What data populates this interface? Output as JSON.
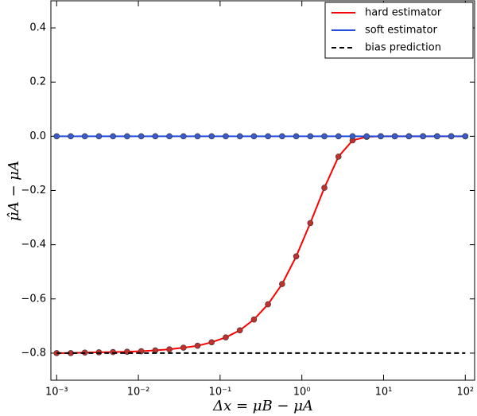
{
  "chart_data": {
    "type": "line",
    "xlabel": "Δx = μB − μA",
    "ylabel": "μ̂A − μA",
    "xscale": "log",
    "x": [
      0.001,
      0.001487,
      0.002212,
      0.00329,
      0.004894,
      0.007279,
      0.01083,
      0.0161,
      0.02395,
      0.03562,
      0.05298,
      0.0788,
      0.1172,
      0.1743,
      0.2593,
      0.3857,
      0.5736,
      0.8532,
      1.269,
      1.887,
      2.807,
      4.175,
      6.21,
      9.237,
      13.74,
      20.43,
      30.39,
      45.2,
      67.23,
      100
    ],
    "series": [
      {
        "name": "hard estimator",
        "color": "#ff0000",
        "marker_color": "#c0302c",
        "markers": true,
        "dash": false,
        "values": [
          -0.8,
          -0.8,
          -0.798,
          -0.797,
          -0.796,
          -0.795,
          -0.793,
          -0.79,
          -0.786,
          -0.78,
          -0.773,
          -0.76,
          -0.742,
          -0.716,
          -0.676,
          -0.62,
          -0.545,
          -0.443,
          -0.32,
          -0.19,
          -0.075,
          -0.015,
          -0.002,
          0,
          0,
          0,
          0,
          0,
          0,
          0
        ]
      },
      {
        "name": "soft estimator",
        "color": "#1f4fe0",
        "marker_color": "#3a5bc8",
        "markers": true,
        "dash": false,
        "values": [
          0,
          0,
          0,
          0,
          0,
          0,
          0,
          0,
          0,
          0,
          0,
          0,
          0,
          0,
          0,
          0,
          0,
          0,
          0,
          0,
          0,
          0,
          0,
          0,
          0,
          0,
          0,
          0,
          0,
          0
        ]
      },
      {
        "name": "bias prediction",
        "color": "#000000",
        "markers": false,
        "dash": true,
        "values": [
          -0.8,
          -0.8,
          -0.8,
          -0.8,
          -0.8,
          -0.8,
          -0.8,
          -0.8,
          -0.8,
          -0.8,
          -0.8,
          -0.8,
          -0.8,
          -0.8,
          -0.8,
          -0.8,
          -0.8,
          -0.8,
          -0.8,
          -0.8,
          -0.8,
          -0.8,
          -0.8,
          -0.8,
          -0.8,
          -0.8,
          -0.8,
          -0.8,
          -0.8,
          -0.8
        ]
      }
    ],
    "xlim": [
      0.00085,
      130
    ],
    "ylim": [
      -0.9,
      0.5
    ],
    "xticks": [
      {
        "value": 0.001,
        "label": "10⁻³"
      },
      {
        "value": 0.01,
        "label": "10⁻²"
      },
      {
        "value": 0.1,
        "label": "10⁻¹"
      },
      {
        "value": 1,
        "label": "10⁰"
      },
      {
        "value": 10,
        "label": "10¹"
      },
      {
        "value": 100,
        "label": "10²"
      }
    ],
    "yticks": [
      {
        "value": -0.8,
        "label": "−0.8"
      },
      {
        "value": -0.6,
        "label": "−0.6"
      },
      {
        "value": -0.4,
        "label": "−0.4"
      },
      {
        "value": -0.2,
        "label": "−0.2"
      },
      {
        "value": 0,
        "label": "0.0"
      },
      {
        "value": 0.2,
        "label": "0.2"
      },
      {
        "value": 0.4,
        "label": "0.4"
      }
    ],
    "legend": "upper right",
    "grid": false
  }
}
